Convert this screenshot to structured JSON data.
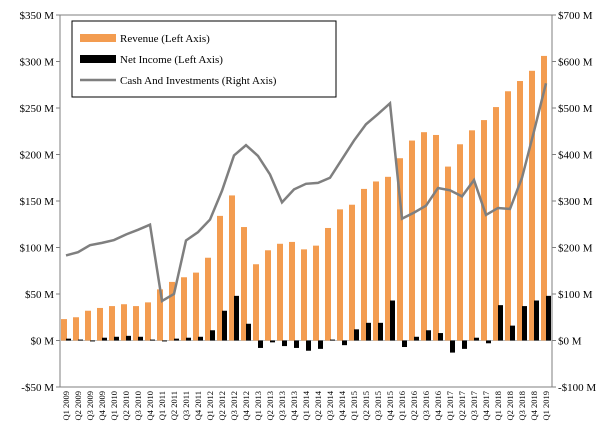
{
  "chart_data": {
    "type": "bar_line_dual_axis",
    "categories": [
      "Q1 2009",
      "Q2 2009",
      "Q3 2009",
      "Q4 2009",
      "Q1 2010",
      "Q2 2010",
      "Q3 2010",
      "Q4 2010",
      "Q1 2011",
      "Q2 2011",
      "Q3 2011",
      "Q4 2011",
      "Q1 2012",
      "Q2 2012",
      "Q3 2012",
      "Q4 2012",
      "Q1 2013",
      "Q2 2013",
      "Q3 2013",
      "Q4 2013",
      "Q1 2014",
      "Q2 2014",
      "Q3 2014",
      "Q4 2014",
      "Q1 2015",
      "Q2 2015",
      "Q3 2015",
      "Q4 2015",
      "Q1 2016",
      "Q2 2016",
      "Q3 2016",
      "Q4 2016",
      "Q1 2017",
      "Q2 2017",
      "Q3 2017",
      "Q4 2017",
      "Q1 2018",
      "Q2 2018",
      "Q3 2018",
      "Q4 2018",
      "Q1 2019"
    ],
    "series": [
      {
        "name": "Revenue (Left Axis)",
        "color": "#f39c50",
        "kind": "bar",
        "values": [
          23,
          25,
          32,
          35,
          37,
          39,
          37,
          41,
          55,
          63,
          68,
          73,
          89,
          134,
          156,
          122,
          82,
          97,
          104,
          106,
          98,
          102,
          121,
          141,
          146,
          163,
          171,
          176,
          196,
          215,
          224,
          221,
          187,
          211,
          226,
          237,
          251,
          268,
          279,
          290,
          306
        ]
      },
      {
        "name": "Net Income (Left Axis)",
        "color": "#000000",
        "kind": "bar",
        "values": [
          2,
          1,
          -1,
          3,
          4,
          5,
          4,
          1,
          -1,
          2,
          3,
          4,
          11,
          32,
          48,
          18,
          -8,
          -2,
          -6,
          -8,
          -11,
          -9,
          1,
          -5,
          12,
          19,
          19,
          43,
          -7,
          4,
          11,
          8,
          -13,
          -9,
          3,
          -3,
          38,
          16,
          37,
          43,
          48
        ]
      },
      {
        "name": "Cash And Investments (Right Axis)",
        "color": "#7f7f7f",
        "kind": "line",
        "axis": "y2",
        "values": [
          183,
          190,
          205,
          210,
          216,
          228,
          238,
          249,
          85,
          100,
          215,
          233,
          260,
          322,
          398,
          420,
          397,
          357,
          297,
          325,
          337,
          339,
          350,
          390,
          430,
          465,
          487,
          510,
          262,
          275,
          290,
          328,
          323,
          310,
          345,
          270,
          285,
          283,
          350,
          450,
          553
        ]
      }
    ],
    "ylim": [
      -50,
      350
    ],
    "yticks": [
      {
        "value": -50,
        "label": "-$50 M"
      },
      {
        "value": 0,
        "label": "$0 M"
      },
      {
        "value": 50,
        "label": "$50 M"
      },
      {
        "value": 100,
        "label": "$100 M"
      },
      {
        "value": 150,
        "label": "$150 M"
      },
      {
        "value": 200,
        "label": "$200 M"
      },
      {
        "value": 250,
        "label": "$250 M"
      },
      {
        "value": 300,
        "label": "$300 M"
      },
      {
        "value": 350,
        "label": "$350 M"
      }
    ],
    "y2lim": [
      -100,
      700
    ],
    "y2ticks": [
      {
        "value": -100,
        "label": "-$100 M"
      },
      {
        "value": 0,
        "label": "$0 M"
      },
      {
        "value": 100,
        "label": "$100 M"
      },
      {
        "value": 200,
        "label": "$200 M"
      },
      {
        "value": 300,
        "label": "$300 M"
      },
      {
        "value": 400,
        "label": "$400 M"
      },
      {
        "value": 500,
        "label": "$500 M"
      },
      {
        "value": 600,
        "label": "$600 M"
      },
      {
        "value": 700,
        "label": "$700 M"
      }
    ],
    "legend": "upper left",
    "grid": false
  }
}
